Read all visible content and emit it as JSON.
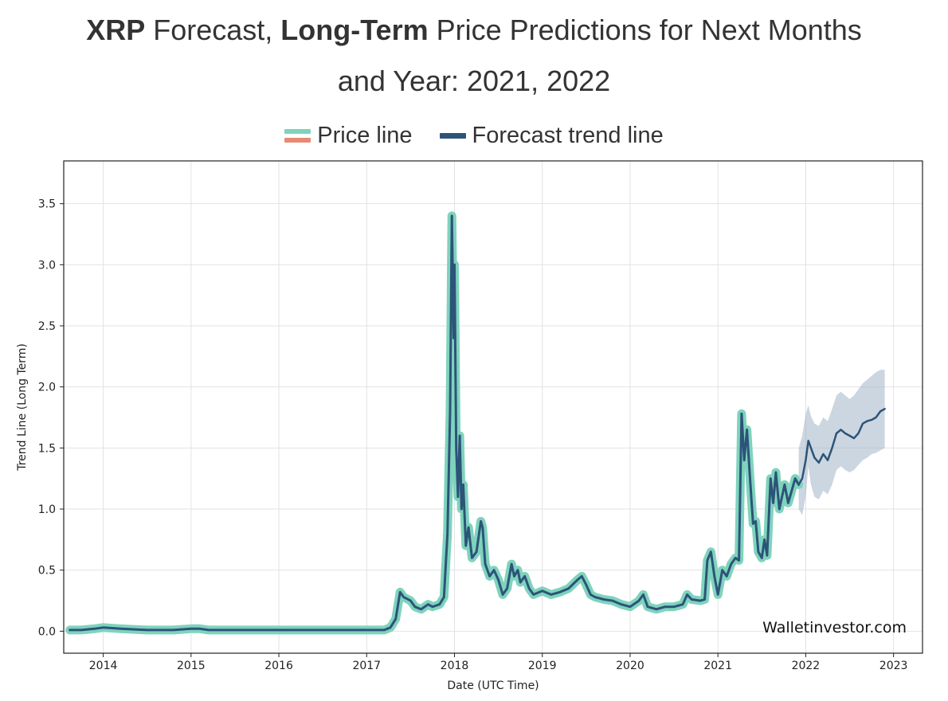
{
  "title": {
    "part1_bold": "XRP",
    "part2": " Forecast, ",
    "part3_bold": "Long-Term",
    "part4": " Price Predictions for Next Months",
    "line2": "and Year: 2021, 2022"
  },
  "legend": {
    "price_label": "Price line",
    "forecast_label": "Forecast trend line"
  },
  "colors": {
    "price_up": "#7fd3bd",
    "price_down": "#e48a75",
    "trend": "#2c5478",
    "band": "#a3b4c6",
    "grid": "#e2e2e2"
  },
  "watermark": "Walletinvestor.com",
  "chart_data": {
    "type": "line",
    "title": "XRP Forecast, Long-Term Price Predictions for Next Months and Year: 2021, 2022",
    "xlabel": "Date (UTC Time)",
    "ylabel": "Trend Line (Long Term)",
    "xlim": [
      2013.55,
      2023.33
    ],
    "ylim": [
      -0.18,
      3.85
    ],
    "x_ticks": [
      2014,
      2015,
      2016,
      2017,
      2018,
      2019,
      2020,
      2021,
      2022,
      2023
    ],
    "x_tick_labels": [
      "2014",
      "2015",
      "2016",
      "2017",
      "2018",
      "2019",
      "2020",
      "2021",
      "2022",
      "2023"
    ],
    "y_ticks": [
      0,
      0.5,
      1.0,
      1.5,
      2.0,
      2.5,
      3.0,
      3.5
    ],
    "y_tick_labels": [
      "0.0",
      "0.5",
      "1.0",
      "1.5",
      "2.0",
      "2.5",
      "3.0",
      "3.5"
    ],
    "grid": true,
    "legend_position": "top-center",
    "series": [
      {
        "name": "Price line",
        "x": [
          2013.62,
          2013.75,
          2013.9,
          2014.0,
          2014.2,
          2014.5,
          2014.8,
          2015.0,
          2015.1,
          2015.2,
          2015.5,
          2016.0,
          2016.5,
          2017.0,
          2017.2,
          2017.27,
          2017.33,
          2017.38,
          2017.42,
          2017.5,
          2017.55,
          2017.62,
          2017.7,
          2017.75,
          2017.83,
          2017.88,
          2017.92,
          2017.95,
          2017.97,
          2017.99,
          2018.0,
          2018.02,
          2018.04,
          2018.06,
          2018.08,
          2018.1,
          2018.13,
          2018.16,
          2018.2,
          2018.25,
          2018.3,
          2018.32,
          2018.35,
          2018.4,
          2018.45,
          2018.5,
          2018.55,
          2018.6,
          2018.65,
          2018.68,
          2018.72,
          2018.75,
          2018.8,
          2018.85,
          2018.9,
          2019.0,
          2019.1,
          2019.2,
          2019.3,
          2019.4,
          2019.45,
          2019.5,
          2019.55,
          2019.6,
          2019.7,
          2019.8,
          2019.9,
          2020.0,
          2020.1,
          2020.15,
          2020.2,
          2020.3,
          2020.4,
          2020.5,
          2020.6,
          2020.65,
          2020.7,
          2020.8,
          2020.85,
          2020.88,
          2020.92,
          2020.96,
          2021.0,
          2021.05,
          2021.1,
          2021.15,
          2021.2,
          2021.24,
          2021.27,
          2021.3,
          2021.33,
          2021.37,
          2021.4,
          2021.43,
          2021.46,
          2021.5,
          2021.53,
          2021.56,
          2021.6,
          2021.63,
          2021.66,
          2021.7,
          2021.73,
          2021.76,
          2021.8,
          2021.84,
          2021.88,
          2021.92
        ],
        "values": [
          0.01,
          0.01,
          0.02,
          0.03,
          0.02,
          0.01,
          0.01,
          0.02,
          0.02,
          0.01,
          0.01,
          0.01,
          0.01,
          0.01,
          0.01,
          0.03,
          0.1,
          0.32,
          0.28,
          0.25,
          0.2,
          0.18,
          0.22,
          0.2,
          0.22,
          0.28,
          0.8,
          1.8,
          3.4,
          2.4,
          3.0,
          1.5,
          1.1,
          1.6,
          1.0,
          1.2,
          0.7,
          0.85,
          0.6,
          0.65,
          0.9,
          0.85,
          0.55,
          0.45,
          0.5,
          0.42,
          0.3,
          0.35,
          0.55,
          0.45,
          0.5,
          0.4,
          0.45,
          0.35,
          0.3,
          0.33,
          0.3,
          0.32,
          0.35,
          0.42,
          0.45,
          0.38,
          0.3,
          0.28,
          0.26,
          0.25,
          0.22,
          0.2,
          0.25,
          0.3,
          0.2,
          0.18,
          0.2,
          0.2,
          0.22,
          0.3,
          0.26,
          0.25,
          0.26,
          0.58,
          0.65,
          0.45,
          0.3,
          0.5,
          0.45,
          0.55,
          0.6,
          0.58,
          1.78,
          1.4,
          1.65,
          1.2,
          0.88,
          0.9,
          0.65,
          0.6,
          0.75,
          0.62,
          1.25,
          1.05,
          1.3,
          1.0,
          1.1,
          1.2,
          1.05,
          1.15,
          1.25,
          1.2
        ]
      },
      {
        "name": "Forecast trend line",
        "x": [
          2021.92,
          2021.96,
          2022.0,
          2022.03,
          2022.06,
          2022.1,
          2022.15,
          2022.2,
          2022.25,
          2022.3,
          2022.35,
          2022.4,
          2022.45,
          2022.5,
          2022.55,
          2022.6,
          2022.65,
          2022.7,
          2022.75,
          2022.8,
          2022.85,
          2022.9
        ],
        "values": [
          1.2,
          1.25,
          1.4,
          1.56,
          1.5,
          1.42,
          1.38,
          1.45,
          1.4,
          1.5,
          1.62,
          1.65,
          1.62,
          1.6,
          1.58,
          1.62,
          1.7,
          1.72,
          1.73,
          1.75,
          1.8,
          1.82
        ],
        "band_lower": [
          1.0,
          0.95,
          1.1,
          1.35,
          1.2,
          1.1,
          1.08,
          1.15,
          1.12,
          1.2,
          1.32,
          1.35,
          1.32,
          1.3,
          1.32,
          1.36,
          1.4,
          1.42,
          1.45,
          1.46,
          1.48,
          1.5
        ],
        "band_upper": [
          1.5,
          1.6,
          1.78,
          1.85,
          1.76,
          1.7,
          1.68,
          1.75,
          1.72,
          1.82,
          1.93,
          1.96,
          1.93,
          1.9,
          1.93,
          1.98,
          2.03,
          2.06,
          2.09,
          2.12,
          2.14,
          2.14
        ]
      }
    ]
  }
}
